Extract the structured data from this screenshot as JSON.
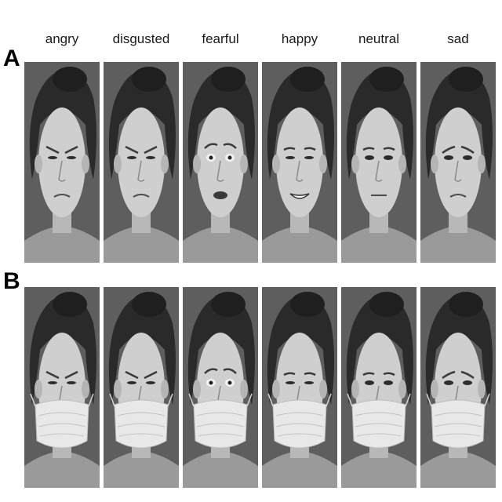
{
  "columns": [
    "angry",
    "disgusted",
    "fearful",
    "happy",
    "neutral",
    "sad"
  ],
  "rows": [
    {
      "label": "A",
      "masked": false
    },
    {
      "label": "B",
      "masked": true
    }
  ],
  "expressions": [
    "angry",
    "disgusted",
    "fearful",
    "happy",
    "neutral",
    "sad"
  ],
  "colors": {
    "background": "#5e5e5e",
    "hair": "#2a2a2a",
    "skin": "#cfcfcf",
    "mask": "#e8e8e8"
  }
}
